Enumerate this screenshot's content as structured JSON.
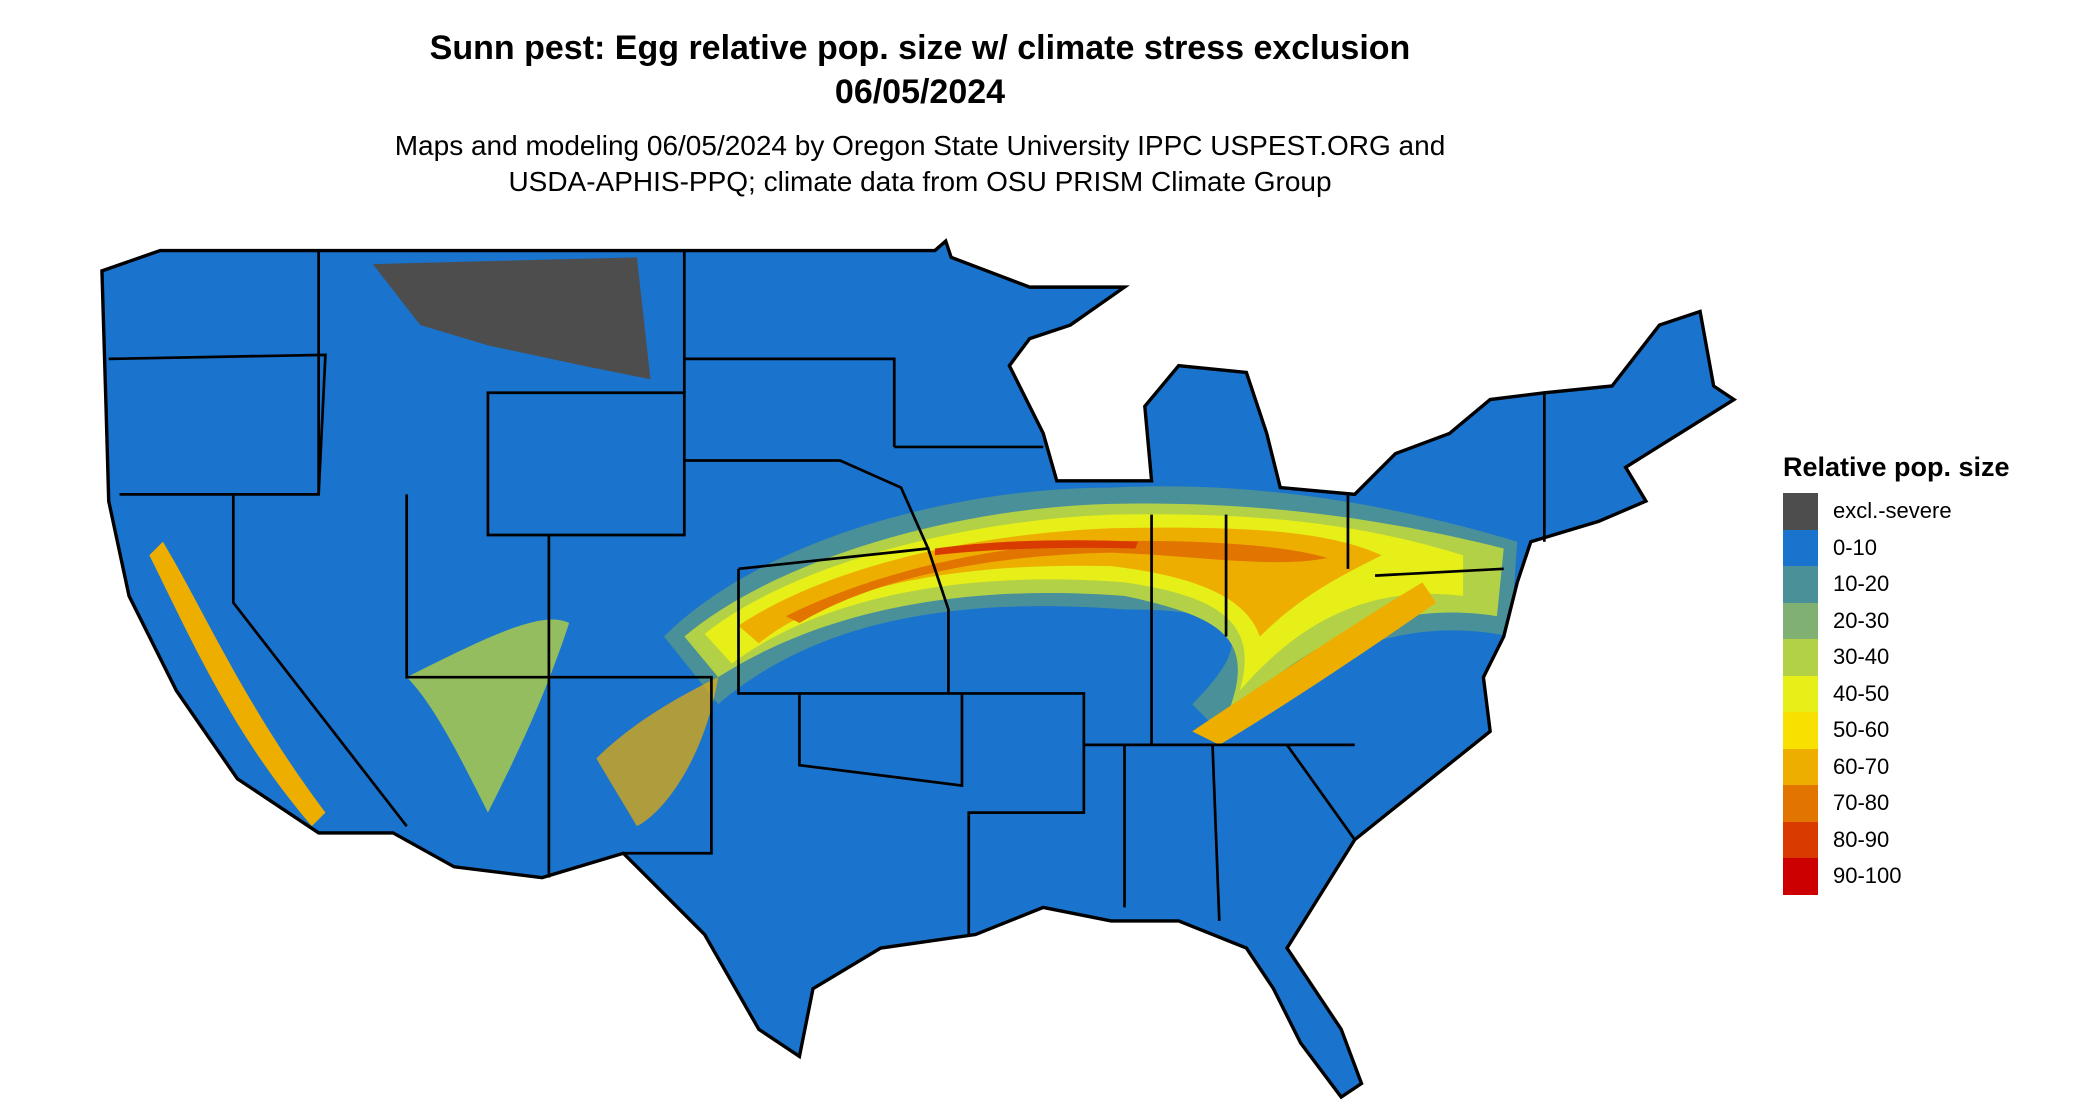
{
  "title_line1": "Sunn pest: Egg relative pop. size w/ climate stress exclusion",
  "title_line2": "06/05/2024",
  "subtitle_line1": "Maps and modeling 06/05/2024 by Oregon State University IPPC USPEST.ORG and",
  "subtitle_line2": "USDA-APHIS-PPQ; climate data from OSU PRISM Climate Group",
  "legend": {
    "title": "Relative pop. size",
    "items": [
      {
        "label": "excl.-severe",
        "color": "#4d4d4d"
      },
      {
        "label": "0-10",
        "color": "#1a73cc"
      },
      {
        "label": "10-20",
        "color": "#4a9099"
      },
      {
        "label": "20-30",
        "color": "#80b072"
      },
      {
        "label": "30-40",
        "color": "#b3d146"
      },
      {
        "label": "40-50",
        "color": "#e6ef18"
      },
      {
        "label": "50-60",
        "color": "#f8e000"
      },
      {
        "label": "60-70",
        "color": "#eeae00"
      },
      {
        "label": "70-80",
        "color": "#e27400"
      },
      {
        "label": "80-90",
        "color": "#d83a00"
      },
      {
        "label": "90-100",
        "color": "#cc0000"
      }
    ]
  }
}
